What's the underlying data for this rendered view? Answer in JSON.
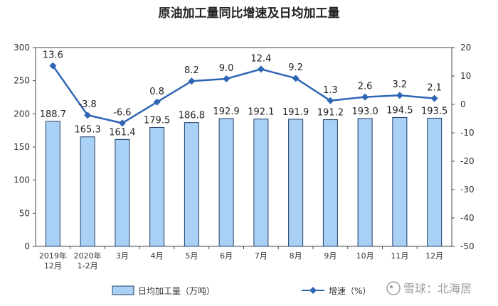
{
  "chart_data": {
    "type": "bar",
    "title": "原油加工量同比增速及日均加工量",
    "categories": [
      [
        "2019年",
        "12月"
      ],
      [
        "2020年",
        "1-2月"
      ],
      [
        "3月"
      ],
      [
        "4月"
      ],
      [
        "5月"
      ],
      [
        "6月"
      ],
      [
        "7月"
      ],
      [
        "8月"
      ],
      [
        "9月"
      ],
      [
        "10月"
      ],
      [
        "11月"
      ],
      [
        "12月"
      ]
    ],
    "series": [
      {
        "name": "日均加工量（万吨）",
        "type": "bar",
        "axis": "left",
        "values": [
          188.7,
          165.3,
          161.4,
          179.5,
          186.8,
          192.9,
          192.1,
          191.9,
          191.2,
          193.0,
          194.5,
          193.5
        ],
        "labels": [
          "188.7",
          "165.3",
          "161.4",
          "179.5",
          "186.8",
          "192.9",
          "192.1",
          "191.9",
          "191.2",
          "193.0",
          "194.5",
          "193.5"
        ],
        "color": "#a9d0f5",
        "border": "#1f3f66"
      },
      {
        "name": "增速（%）",
        "type": "line",
        "axis": "right",
        "values": [
          13.6,
          -3.8,
          -6.6,
          0.8,
          8.2,
          9.0,
          12.4,
          9.2,
          1.3,
          2.6,
          3.2,
          2.1
        ],
        "labels": [
          "13.6",
          "-3.8",
          "-6.6",
          "0.8",
          "8.2",
          "9.0",
          "12.4",
          "9.2",
          "1.3",
          "2.6",
          "3.2",
          "2.1"
        ],
        "color": "#2e66b5"
      }
    ],
    "y_left": {
      "min": 0,
      "max": 300,
      "ticks": [
        "0",
        "50",
        "100",
        "150",
        "200",
        "250",
        "300"
      ]
    },
    "y_right": {
      "min": -50,
      "max": 20,
      "ticks": [
        "-50",
        "-40",
        "-30",
        "-20",
        "-10",
        "0",
        "10",
        "20"
      ]
    },
    "legend": {
      "position": "bottom"
    }
  },
  "watermark": "雪球：北海居"
}
